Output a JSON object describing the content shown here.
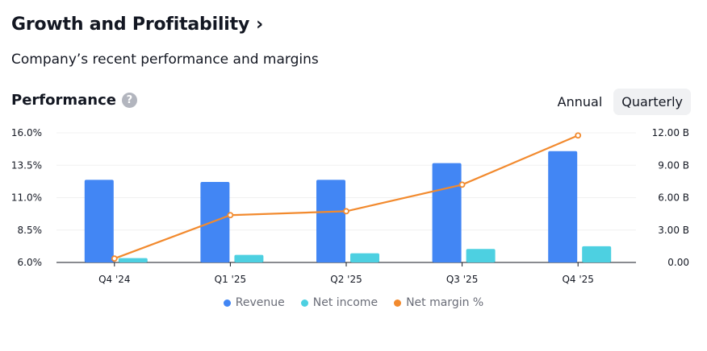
{
  "header": {
    "title": "Growth and Profitability",
    "title_chevron": "›",
    "subtitle": "Company’s recent performance and margins"
  },
  "performance": {
    "title": "Performance",
    "help_icon_glyph": "?",
    "toggle": [
      {
        "label": "Annual",
        "active": false
      },
      {
        "label": "Quarterly",
        "active": true
      }
    ]
  },
  "colors": {
    "revenue": "#4286f4",
    "net_income": "#4dd0e1",
    "net_margin": "#f28a2e",
    "grid": "#f0f0f0",
    "axis": "#131722"
  },
  "chart_data": {
    "type": "bar",
    "categories": [
      "Q4 '24",
      "Q1 '25",
      "Q2 '25",
      "Q3 '25",
      "Q4 '25"
    ],
    "series": [
      {
        "name": "Revenue",
        "type": "bar",
        "axis": "right",
        "values": [
          7.65,
          7.45,
          7.65,
          9.2,
          10.3
        ]
      },
      {
        "name": "Net income",
        "type": "bar",
        "axis": "right",
        "values": [
          0.4,
          0.7,
          0.85,
          1.25,
          1.5
        ]
      },
      {
        "name": "Net margin %",
        "type": "line",
        "axis": "left",
        "values": [
          6.3,
          9.65,
          9.95,
          12.0,
          15.8
        ]
      }
    ],
    "left_axis": {
      "ticks": [
        "16.0%",
        "13.5%",
        "11.0%",
        "8.5%",
        "6.0%"
      ],
      "ylim": [
        6.0,
        16.0
      ]
    },
    "right_axis": {
      "ticks": [
        "12.00 B",
        "9.00 B",
        "6.00 B",
        "3.00 B",
        "0.00"
      ],
      "ylim": [
        0,
        12
      ]
    },
    "legend_position": "bottom",
    "grid": true
  }
}
